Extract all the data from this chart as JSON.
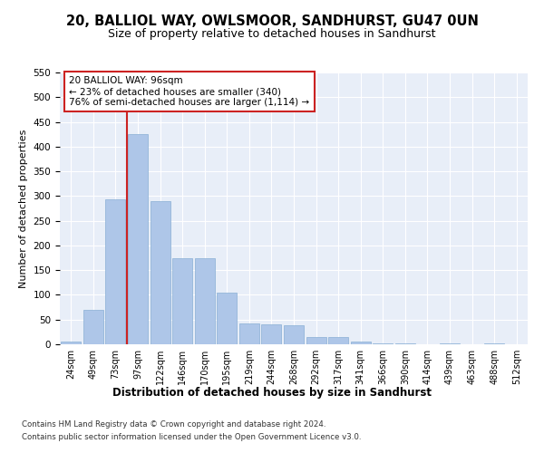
{
  "title1": "20, BALLIOL WAY, OWLSMOOR, SANDHURST, GU47 0UN",
  "title2": "Size of property relative to detached houses in Sandhurst",
  "xlabel": "Distribution of detached houses by size in Sandhurst",
  "ylabel": "Number of detached properties",
  "categories": [
    "24sqm",
    "49sqm",
    "73sqm",
    "97sqm",
    "122sqm",
    "146sqm",
    "170sqm",
    "195sqm",
    "219sqm",
    "244sqm",
    "268sqm",
    "292sqm",
    "317sqm",
    "341sqm",
    "366sqm",
    "390sqm",
    "414sqm",
    "439sqm",
    "463sqm",
    "488sqm",
    "512sqm"
  ],
  "values": [
    5,
    70,
    293,
    425,
    290,
    175,
    175,
    105,
    43,
    40,
    38,
    15,
    15,
    6,
    1,
    1,
    0,
    2,
    0,
    1,
    0
  ],
  "bar_color": "#aec6e8",
  "bar_edge_color": "#88afd4",
  "vline_pos": 2.5,
  "vline_color": "#cc2222",
  "annotation_line1": "20 BALLIOL WAY: 96sqm",
  "annotation_line2": "← 23% of detached houses are smaller (340)",
  "annotation_line3": "76% of semi-detached houses are larger (1,114) →",
  "annotation_edge_color": "#cc2222",
  "ylim_max": 550,
  "yticks": [
    0,
    50,
    100,
    150,
    200,
    250,
    300,
    350,
    400,
    450,
    500,
    550
  ],
  "footer1": "Contains HM Land Registry data © Crown copyright and database right 2024.",
  "footer2": "Contains public sector information licensed under the Open Government Licence v3.0.",
  "grid_color": "#ffffff",
  "axes_bg": "#e8eef8"
}
